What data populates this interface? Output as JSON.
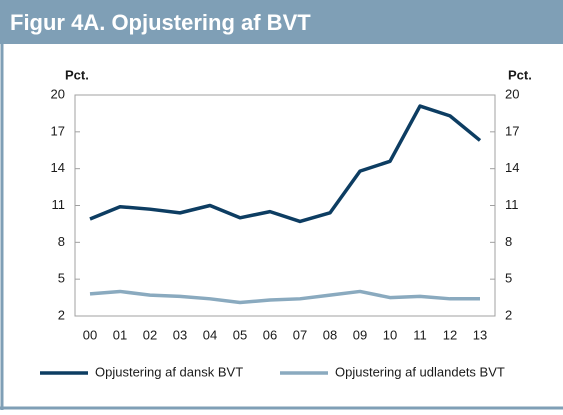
{
  "chart_data": {
    "type": "line",
    "title": "Figur 4A. Opjustering af BVT",
    "y_label": "Pct.",
    "y2_label": "Pct.",
    "categories": [
      "00",
      "01",
      "02",
      "03",
      "04",
      "05",
      "06",
      "07",
      "08",
      "09",
      "10",
      "11",
      "12",
      "13"
    ],
    "series": [
      {
        "name": "Opjustering af dansk BVT",
        "color": "#0d3d62",
        "values": [
          9.9,
          10.9,
          10.7,
          10.4,
          11.0,
          10.0,
          10.5,
          9.7,
          10.4,
          13.8,
          14.6,
          19.1,
          18.3,
          16.3
        ]
      },
      {
        "name": "Opjustering af udlandets BVT",
        "color": "#8aaabf",
        "values": [
          3.8,
          4.0,
          3.7,
          3.6,
          3.4,
          3.1,
          3.3,
          3.4,
          3.7,
          4.0,
          3.5,
          3.6,
          3.4,
          3.4
        ]
      }
    ],
    "ylim": [
      2,
      20
    ],
    "yticks": [
      2,
      5,
      8,
      11,
      14,
      17,
      20
    ],
    "y2lim": [
      2,
      20
    ],
    "y2ticks": [
      2,
      5,
      8,
      11,
      14,
      17,
      20
    ],
    "grid": false,
    "legend": "bottom"
  }
}
